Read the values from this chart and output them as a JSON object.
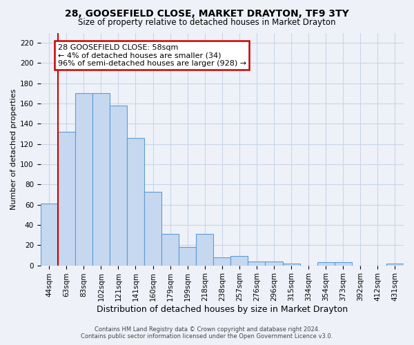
{
  "title": "28, GOOSEFIELD CLOSE, MARKET DRAYTON, TF9 3TY",
  "subtitle": "Size of property relative to detached houses in Market Drayton",
  "xlabel": "Distribution of detached houses by size in Market Drayton",
  "ylabel": "Number of detached properties",
  "footer": "Contains HM Land Registry data © Crown copyright and database right 2024.\nContains public sector information licensed under the Open Government Licence v3.0.",
  "bar_labels": [
    "44sqm",
    "63sqm",
    "83sqm",
    "102sqm",
    "121sqm",
    "141sqm",
    "160sqm",
    "179sqm",
    "199sqm",
    "218sqm",
    "238sqm",
    "257sqm",
    "276sqm",
    "296sqm",
    "315sqm",
    "334sqm",
    "354sqm",
    "373sqm",
    "392sqm",
    "412sqm",
    "431sqm"
  ],
  "bar_values": [
    61,
    132,
    170,
    170,
    158,
    126,
    73,
    31,
    18,
    31,
    8,
    9,
    4,
    4,
    2,
    0,
    3,
    3,
    0,
    0,
    2
  ],
  "bar_color": "#c5d8f0",
  "bar_edge_color": "#5b9bd5",
  "grid_color": "#c8d4e8",
  "background_color": "#eef2f8",
  "annotation_line1": "28 GOOSEFIELD CLOSE: 58sqm",
  "annotation_line2": "← 4% of detached houses are smaller (34)",
  "annotation_line3": "96% of semi-detached houses are larger (928) →",
  "annotation_box_color": "#ffffff",
  "annotation_box_edge": "#cc0000",
  "red_line_color": "#cc0000",
  "ylim": [
    0,
    230
  ],
  "yticks": [
    0,
    20,
    40,
    60,
    80,
    100,
    120,
    140,
    160,
    180,
    200,
    220
  ],
  "title_fontsize": 10,
  "subtitle_fontsize": 8.5,
  "ylabel_fontsize": 8,
  "xlabel_fontsize": 9,
  "footer_fontsize": 6,
  "tick_fontsize": 7.5,
  "ytick_fontsize": 7.5
}
